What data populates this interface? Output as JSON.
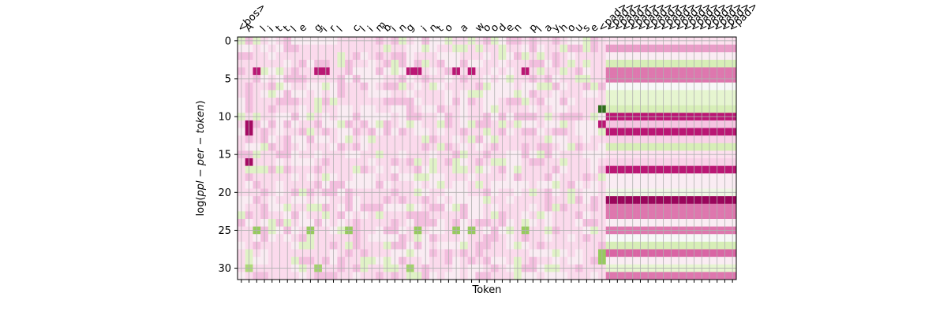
{
  "chart_data": {
    "type": "heatmap",
    "xlabel": "Token",
    "ylabel": "log(ppl − per − token)",
    "y_ticks": [
      0,
      5,
      10,
      15,
      20,
      25,
      30
    ],
    "rows": 32,
    "grid": true,
    "colormap": "PiYG (diverging, magenta ↔ green)",
    "tokens": [
      "<bos>",
      "A",
      " ",
      "l",
      "i",
      "t",
      "t",
      "l",
      "e",
      " ",
      "g",
      "i",
      "r",
      "l",
      " ",
      "c",
      "l",
      "i",
      "m",
      "b",
      "i",
      "n",
      "g",
      " ",
      "i",
      "n",
      "t",
      "o",
      " ",
      "a",
      " ",
      "w",
      "o",
      "o",
      "d",
      "e",
      "n",
      " ",
      "p",
      "l",
      "a",
      "y",
      "h",
      "o",
      "u",
      "s",
      "e",
      "<pad>",
      "<pad>",
      "<pad>",
      "<pad>",
      "<pad>",
      "<pad>",
      "<pad>",
      "<pad>",
      "<pad>",
      "<pad>",
      "<pad>",
      "<pad>",
      "<pad>",
      "<pad>",
      "<pad>",
      "<pad>",
      "<pad>",
      "<pad>"
    ],
    "pad_row_values": [
      0.1,
      0.35,
      0.05,
      -0.15,
      0.5,
      0.5,
      0.0,
      -0.1,
      -0.1,
      -0.15,
      0.8,
      0.2,
      0.8,
      0.15,
      -0.15,
      0.1,
      0.15,
      0.8,
      0.05,
      0.05,
      -0.05,
      0.95,
      0.5,
      0.5,
      0.05,
      0.5,
      0.0,
      -0.15,
      0.55,
      0.05,
      -0.1,
      0.5
    ],
    "highlight_cells": [
      {
        "row": 4,
        "col": 2,
        "value": 0.8
      },
      {
        "row": 4,
        "col": 10,
        "value": 0.8
      },
      {
        "row": 4,
        "col": 11,
        "value": 0.8
      },
      {
        "row": 4,
        "col": 22,
        "value": 0.8
      },
      {
        "row": 4,
        "col": 23,
        "value": 0.8
      },
      {
        "row": 4,
        "col": 28,
        "value": 0.8
      },
      {
        "row": 4,
        "col": 30,
        "value": 0.8
      },
      {
        "row": 4,
        "col": 37,
        "value": 0.8
      },
      {
        "row": 9,
        "col": 47,
        "value": -0.95
      },
      {
        "row": 11,
        "col": 1,
        "value": 0.9
      },
      {
        "row": 12,
        "col": 1,
        "value": 0.9
      },
      {
        "row": 16,
        "col": 1,
        "value": 0.9
      },
      {
        "row": 11,
        "col": 47,
        "value": 0.8
      },
      {
        "row": 25,
        "col": 2,
        "value": -0.4
      },
      {
        "row": 25,
        "col": 9,
        "value": -0.4
      },
      {
        "row": 25,
        "col": 14,
        "value": -0.4
      },
      {
        "row": 25,
        "col": 23,
        "value": -0.4
      },
      {
        "row": 25,
        "col": 28,
        "value": -0.4
      },
      {
        "row": 25,
        "col": 30,
        "value": -0.4
      },
      {
        "row": 25,
        "col": 37,
        "value": -0.4
      },
      {
        "row": 28,
        "col": 47,
        "value": -0.4
      },
      {
        "row": 29,
        "col": 47,
        "value": -0.4
      },
      {
        "row": 30,
        "col": 1,
        "value": -0.3
      },
      {
        "row": 30,
        "col": 10,
        "value": -0.35
      },
      {
        "row": 30,
        "col": 22,
        "value": -0.35
      }
    ]
  }
}
